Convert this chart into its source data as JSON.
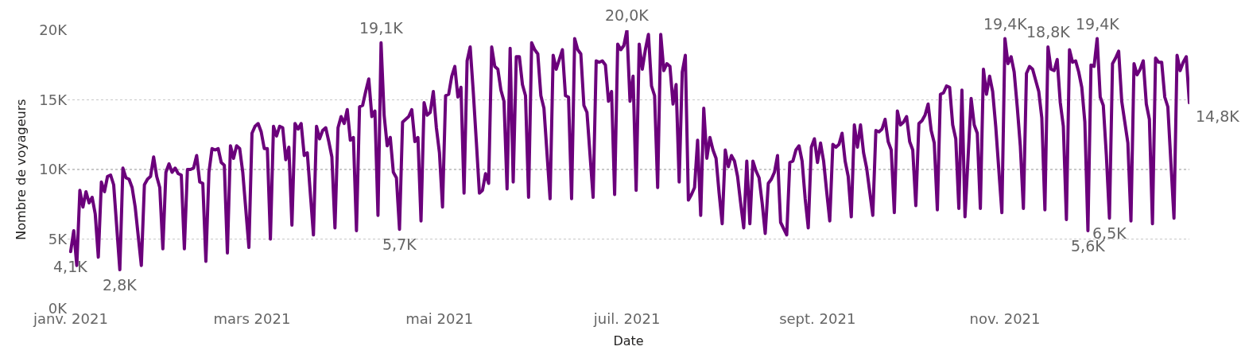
{
  "chart_data": {
    "type": "line",
    "xlabel": "Date",
    "ylabel": "Nombre de voyageurs",
    "x": [
      "2021-01-01",
      "2021-01-02",
      "2021-01-03",
      "2021-01-04",
      "2021-01-05",
      "2021-01-06",
      "2021-01-07",
      "2021-01-08",
      "2021-01-09",
      "2021-01-10",
      "2021-01-11",
      "2021-01-12",
      "2021-01-13",
      "2021-01-14",
      "2021-01-15",
      "2021-01-17",
      "2021-01-18",
      "2021-01-19",
      "2021-01-20",
      "2021-01-21",
      "2021-01-22",
      "2021-01-24",
      "2021-01-25",
      "2021-01-26",
      "2021-01-27",
      "2021-01-28",
      "2021-01-29",
      "2021-01-30",
      "2021-01-31",
      "2021-02-01",
      "2021-02-02",
      "2021-02-03",
      "2021-02-04",
      "2021-02-05",
      "2021-02-06",
      "2021-02-07",
      "2021-02-08",
      "2021-02-09",
      "2021-02-10",
      "2021-02-11",
      "2021-02-12",
      "2021-02-13",
      "2021-02-14",
      "2021-02-15",
      "2021-02-16",
      "2021-02-17",
      "2021-02-18",
      "2021-02-19",
      "2021-02-20",
      "2021-02-21",
      "2021-02-22",
      "2021-02-23",
      "2021-02-24",
      "2021-02-25",
      "2021-02-26",
      "2021-02-28",
      "2021-03-01",
      "2021-03-02",
      "2021-03-03",
      "2021-03-04",
      "2021-03-05",
      "2021-03-06",
      "2021-03-07",
      "2021-03-08",
      "2021-03-09",
      "2021-03-10",
      "2021-03-11",
      "2021-03-12",
      "2021-03-13",
      "2021-03-14",
      "2021-03-15",
      "2021-03-16",
      "2021-03-17",
      "2021-03-18",
      "2021-03-19",
      "2021-03-21",
      "2021-03-22",
      "2021-03-23",
      "2021-03-24",
      "2021-03-25",
      "2021-03-26",
      "2021-03-27",
      "2021-03-28",
      "2021-03-29",
      "2021-03-30",
      "2021-03-31",
      "2021-04-01",
      "2021-04-02",
      "2021-04-03",
      "2021-04-04",
      "2021-04-05",
      "2021-04-06",
      "2021-04-07",
      "2021-04-08",
      "2021-04-09",
      "2021-04-10",
      "2021-04-11",
      "2021-04-12",
      "2021-04-13",
      "2021-04-14",
      "2021-04-15",
      "2021-04-16",
      "2021-04-17",
      "2021-04-18",
      "2021-04-19",
      "2021-04-20",
      "2021-04-21",
      "2021-04-22",
      "2021-04-23",
      "2021-04-24",
      "2021-04-25",
      "2021-04-26",
      "2021-04-27",
      "2021-04-28",
      "2021-04-29",
      "2021-04-30",
      "2021-05-01",
      "2021-05-02",
      "2021-05-03",
      "2021-05-04",
      "2021-05-05",
      "2021-05-06",
      "2021-05-07",
      "2021-05-08",
      "2021-05-09",
      "2021-05-10",
      "2021-05-11",
      "2021-05-12",
      "2021-05-13",
      "2021-05-14",
      "2021-05-15",
      "2021-05-16",
      "2021-05-17",
      "2021-05-18",
      "2021-05-19",
      "2021-05-20",
      "2021-05-21",
      "2021-05-22",
      "2021-05-23",
      "2021-05-24",
      "2021-05-25",
      "2021-05-26",
      "2021-05-27",
      "2021-05-28",
      "2021-05-29",
      "2021-05-30",
      "2021-05-31",
      "2021-06-01",
      "2021-06-02",
      "2021-06-03",
      "2021-06-04",
      "2021-06-06",
      "2021-06-07",
      "2021-06-08",
      "2021-06-09",
      "2021-06-10",
      "2021-06-11",
      "2021-06-12",
      "2021-06-13",
      "2021-06-14",
      "2021-06-15",
      "2021-06-16",
      "2021-06-17",
      "2021-06-18",
      "2021-06-20",
      "2021-06-21",
      "2021-06-22",
      "2021-06-23",
      "2021-06-24",
      "2021-06-25",
      "2021-06-26",
      "2021-06-27",
      "2021-06-28",
      "2021-06-29",
      "2021-06-30",
      "2021-07-01",
      "2021-07-02",
      "2021-07-03",
      "2021-07-04",
      "2021-07-05",
      "2021-07-06",
      "2021-07-07",
      "2021-07-08",
      "2021-07-09",
      "2021-07-10",
      "2021-07-11",
      "2021-07-12",
      "2021-07-13",
      "2021-07-14",
      "2021-07-15",
      "2021-07-16",
      "2021-07-17",
      "2021-07-18",
      "2021-07-19",
      "2021-07-20",
      "2021-07-21",
      "2021-07-22",
      "2021-07-23",
      "2021-07-24",
      "2021-07-25",
      "2021-07-26",
      "2021-07-27",
      "2021-07-28",
      "2021-07-29",
      "2021-07-30",
      "2021-07-31",
      "2021-08-01",
      "2021-08-02",
      "2021-08-03",
      "2021-08-04",
      "2021-08-05",
      "2021-08-06",
      "2021-08-07",
      "2021-08-08",
      "2021-08-09",
      "2021-08-10",
      "2021-08-11",
      "2021-08-12",
      "2021-08-13",
      "2021-08-14",
      "2021-08-15",
      "2021-08-16",
      "2021-08-17",
      "2021-08-18",
      "2021-08-19",
      "2021-08-20",
      "2021-08-22",
      "2021-08-23",
      "2021-08-24",
      "2021-08-25",
      "2021-08-26",
      "2021-08-27",
      "2021-08-28",
      "2021-08-29",
      "2021-08-30",
      "2021-08-31",
      "2021-09-01",
      "2021-09-02",
      "2021-09-03",
      "2021-09-04",
      "2021-09-05",
      "2021-09-06",
      "2021-09-07",
      "2021-09-08",
      "2021-09-09",
      "2021-09-10",
      "2021-09-11",
      "2021-09-12",
      "2021-09-13",
      "2021-09-14",
      "2021-09-15",
      "2021-09-16",
      "2021-09-17",
      "2021-09-19",
      "2021-09-20",
      "2021-09-21",
      "2021-09-22",
      "2021-09-23",
      "2021-09-24",
      "2021-09-25",
      "2021-09-26",
      "2021-09-27",
      "2021-09-28",
      "2021-09-29",
      "2021-09-30",
      "2021-10-01",
      "2021-10-02",
      "2021-10-03",
      "2021-10-04",
      "2021-10-05",
      "2021-10-06",
      "2021-10-07",
      "2021-10-08",
      "2021-10-09",
      "2021-10-10",
      "2021-10-11",
      "2021-10-12",
      "2021-10-13",
      "2021-10-14",
      "2021-10-15",
      "2021-10-16",
      "2021-10-17",
      "2021-10-18",
      "2021-10-19",
      "2021-10-21",
      "2021-10-22",
      "2021-10-23",
      "2021-10-24",
      "2021-10-25",
      "2021-10-26",
      "2021-10-27",
      "2021-10-28",
      "2021-10-29",
      "2021-10-31",
      "2021-11-01",
      "2021-11-02",
      "2021-11-03",
      "2021-11-04",
      "2021-11-05",
      "2021-11-06",
      "2021-11-07",
      "2021-11-08",
      "2021-11-09",
      "2021-11-10",
      "2021-11-11",
      "2021-11-12",
      "2021-11-13",
      "2021-11-14",
      "2021-11-15",
      "2021-11-16",
      "2021-11-17",
      "2021-11-18",
      "2021-11-19",
      "2021-11-20",
      "2021-11-21",
      "2021-11-22",
      "2021-11-23",
      "2021-11-24",
      "2021-11-25",
      "2021-11-26",
      "2021-11-27",
      "2021-11-28",
      "2021-11-29",
      "2021-11-30",
      "2021-12-01",
      "2021-12-02",
      "2021-12-03",
      "2021-12-04",
      "2021-12-05",
      "2021-12-06",
      "2021-12-07",
      "2021-12-08",
      "2021-12-09",
      "2021-12-10",
      "2021-12-11",
      "2021-12-12",
      "2021-12-13",
      "2021-12-14",
      "2021-12-15",
      "2021-12-16",
      "2021-12-17",
      "2021-12-18",
      "2021-12-19",
      "2021-12-20",
      "2021-12-21",
      "2021-12-22",
      "2021-12-23",
      "2021-12-24",
      "2021-12-26",
      "2021-12-27",
      "2021-12-28",
      "2021-12-29",
      "2021-12-30",
      "2021-12-31"
    ],
    "series": [
      {
        "color": "#6b007b",
        "values": [
          4100,
          5600,
          3100,
          8500,
          7300,
          8400,
          7600,
          8000,
          6800,
          3700,
          9100,
          8400,
          9500,
          9600,
          8900,
          2800,
          10100,
          9400,
          9300,
          8700,
          7300,
          3100,
          8900,
          9300,
          9500,
          10900,
          9500,
          8700,
          4300,
          9800,
          10400,
          9800,
          10100,
          9700,
          9600,
          4300,
          10000,
          10000,
          10100,
          11000,
          9100,
          9000,
          3400,
          9800,
          11500,
          11400,
          11500,
          10500,
          10300,
          4000,
          11700,
          10800,
          11700,
          11500,
          9800,
          4400,
          12600,
          13100,
          13300,
          12700,
          11500,
          11500,
          5000,
          13100,
          12400,
          13100,
          13000,
          10700,
          11600,
          6000,
          13300,
          12900,
          13300,
          11000,
          11200,
          5300,
          13100,
          12200,
          12800,
          13000,
          12000,
          10900,
          5800,
          13000,
          13800,
          13300,
          14300,
          12100,
          12300,
          5600,
          14500,
          14600,
          15600,
          16500,
          13800,
          14200,
          6700,
          19100,
          13900,
          11700,
          12300,
          9800,
          9400,
          5700,
          13400,
          13600,
          13800,
          14300,
          12000,
          12300,
          6300,
          14800,
          13900,
          14100,
          15600,
          13000,
          11200,
          7300,
          15300,
          15400,
          16700,
          17400,
          15200,
          15900,
          8300,
          17800,
          18800,
          15600,
          12000,
          8300,
          8500,
          9700,
          9000,
          18800,
          17400,
          17200,
          15700,
          14900,
          8600,
          18700,
          9100,
          18100,
          18100,
          16100,
          15300,
          8000,
          19100,
          18600,
          18300,
          15300,
          14400,
          7900,
          18200,
          17200,
          17900,
          18600,
          15300,
          15200,
          7900,
          19400,
          18600,
          18300,
          14600,
          14100,
          8000,
          17800,
          17700,
          17800,
          17500,
          14900,
          15600,
          8200,
          19000,
          18600,
          18900,
          20000,
          14900,
          16700,
          8500,
          19000,
          17200,
          18600,
          19700,
          16000,
          15300,
          8700,
          19700,
          17100,
          17600,
          17400,
          14700,
          16100,
          9100,
          17000,
          18200,
          7800,
          8200,
          8700,
          12100,
          6700,
          14400,
          10800,
          12300,
          11400,
          10800,
          8300,
          6100,
          11400,
          10200,
          11000,
          10600,
          9500,
          7600,
          5800,
          10600,
          6100,
          10600,
          9900,
          9400,
          7600,
          5400,
          9000,
          9300,
          9800,
          11000,
          6200,
          5300,
          10500,
          10600,
          11400,
          11700,
          10600,
          7900,
          5800,
          11600,
          12200,
          10500,
          11900,
          10600,
          8400,
          6300,
          11800,
          11600,
          11800,
          12600,
          10600,
          9500,
          6600,
          13200,
          11600,
          13200,
          11200,
          10100,
          6700,
          12800,
          12700,
          12900,
          13600,
          12000,
          11400,
          6900,
          14200,
          13200,
          13400,
          13800,
          12000,
          11400,
          7400,
          13300,
          13500,
          13900,
          14700,
          12800,
          11900,
          7100,
          15400,
          15500,
          16000,
          15900,
          13200,
          12200,
          7200,
          15700,
          6600,
          15100,
          13200,
          12600,
          7200,
          17200,
          15400,
          16700,
          15600,
          13100,
          6900,
          19400,
          17600,
          18100,
          17000,
          14500,
          11700,
          7200,
          16900,
          17400,
          17200,
          16400,
          15600,
          13700,
          7100,
          18800,
          17200,
          17100,
          17900,
          14800,
          13100,
          6400,
          18600,
          17700,
          17800,
          17000,
          15900,
          13400,
          5600,
          17500,
          17400,
          19400,
          15200,
          14600,
          11000,
          6500,
          17600,
          18000,
          18500,
          14900,
          13400,
          11900,
          6300,
          17600,
          16800,
          17200,
          17800,
          14700,
          13600,
          6100,
          18000,
          17700,
          17700,
          15200,
          14500,
          6500,
          18200,
          17100,
          17700,
          18100,
          14800
        ]
      }
    ],
    "xlim": [
      "2020-12-31",
      "2021-12-31"
    ],
    "xticks": [
      {
        "value": "2021-01-01",
        "label": "janv. 2021"
      },
      {
        "value": "2021-03-01",
        "label": "mars 2021"
      },
      {
        "value": "2021-05-01",
        "label": "mai 2021"
      },
      {
        "value": "2021-07-01",
        "label": "juil. 2021"
      },
      {
        "value": "2021-09-01",
        "label": "sept. 2021"
      },
      {
        "value": "2021-11-01",
        "label": "nov. 2021"
      }
    ],
    "ylim": [
      0,
      20000
    ],
    "yticks": [
      {
        "value": 0,
        "label": "0K"
      },
      {
        "value": 5000,
        "label": "5K"
      },
      {
        "value": 10000,
        "label": "10K"
      },
      {
        "value": 15000,
        "label": "15K"
      },
      {
        "value": 20000,
        "label": "20K"
      }
    ],
    "grid": "y",
    "marker": "none",
    "line_style": "solid",
    "annotations": [
      {
        "text": "4,1K",
        "x": "2021-01-01",
        "y": 4100
      },
      {
        "text": "2,8K",
        "x": "2021-01-17",
        "y": 2800
      },
      {
        "text": "19,1K",
        "x": "2021-04-12",
        "y": 19100
      },
      {
        "text": "5,7K",
        "x": "2021-04-18",
        "y": 5700
      },
      {
        "text": "20,0K",
        "x": "2021-07-01",
        "y": 20000
      },
      {
        "text": "19,4K",
        "x": "2021-11-01",
        "y": 19400
      },
      {
        "text": "18,8K",
        "x": "2021-11-15",
        "y": 18800
      },
      {
        "text": "5,6K",
        "x": "2021-11-28",
        "y": 5600
      },
      {
        "text": "19,4K",
        "x": "2021-12-01",
        "y": 19400
      },
      {
        "text": "6,5K",
        "x": "2021-12-05",
        "y": 6500
      },
      {
        "text": "14,8K",
        "x": "2021-12-31",
        "y": 14800
      }
    ]
  }
}
